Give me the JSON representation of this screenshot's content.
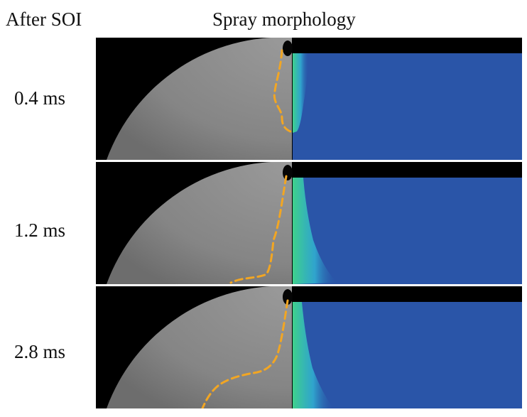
{
  "header": {
    "left": "After SOI",
    "right": "Spray morphology"
  },
  "panels": [
    {
      "time": "0.4 ms"
    },
    {
      "time": "1.2 ms"
    },
    {
      "time": "2.8 ms"
    }
  ],
  "colors": {
    "chamber_gray": "#8a8a8a",
    "background": "#000000",
    "simulation_blue": "#2a55a8",
    "spray_green": "#3fd18a",
    "spray_cyan": "#31b7d6",
    "outline_orange": "#f2a623"
  }
}
